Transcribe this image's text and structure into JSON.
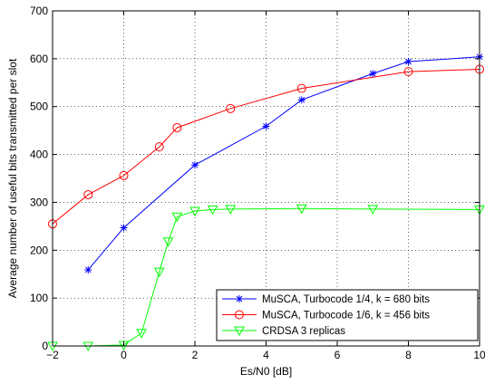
{
  "chart_data": {
    "type": "line",
    "title": "",
    "xlabel": "Es/N0 [dB]",
    "ylabel": "Average number of useful bits transmitted per slot",
    "xlim": [
      -2,
      10
    ],
    "ylim": [
      0,
      700
    ],
    "xticks": [
      -2,
      0,
      2,
      4,
      6,
      8,
      10
    ],
    "yticks": [
      0,
      100,
      200,
      300,
      400,
      500,
      600,
      700
    ],
    "grid": true,
    "legend_position": "bottom-right",
    "series": [
      {
        "name": "MuSCA, Turbocode 1/4, k = 680 bits",
        "color": "#0000ff",
        "marker": "star",
        "x": [
          -1,
          0,
          2,
          4,
          5,
          7,
          8,
          10
        ],
        "y": [
          159,
          247,
          378,
          459,
          514,
          569,
          594,
          604
        ]
      },
      {
        "name": "MuSCA, Turbocode 1/6, k = 456 bits",
        "color": "#ff0000",
        "marker": "circle",
        "x": [
          -2,
          -1,
          0,
          1,
          1.5,
          3,
          5,
          8,
          10
        ],
        "y": [
          255,
          316,
          356,
          416,
          456,
          496,
          538,
          573,
          578
        ]
      },
      {
        "name": "CRDSA 3 replicas",
        "color": "#00ff00",
        "marker": "triangle-down",
        "x": [
          -2,
          -1,
          0,
          0.5,
          1,
          1.25,
          1.5,
          2,
          2.5,
          3,
          5,
          7,
          10
        ],
        "y": [
          0,
          0,
          2,
          27,
          155,
          218,
          270,
          282,
          285,
          286,
          287,
          286,
          285
        ]
      }
    ]
  }
}
